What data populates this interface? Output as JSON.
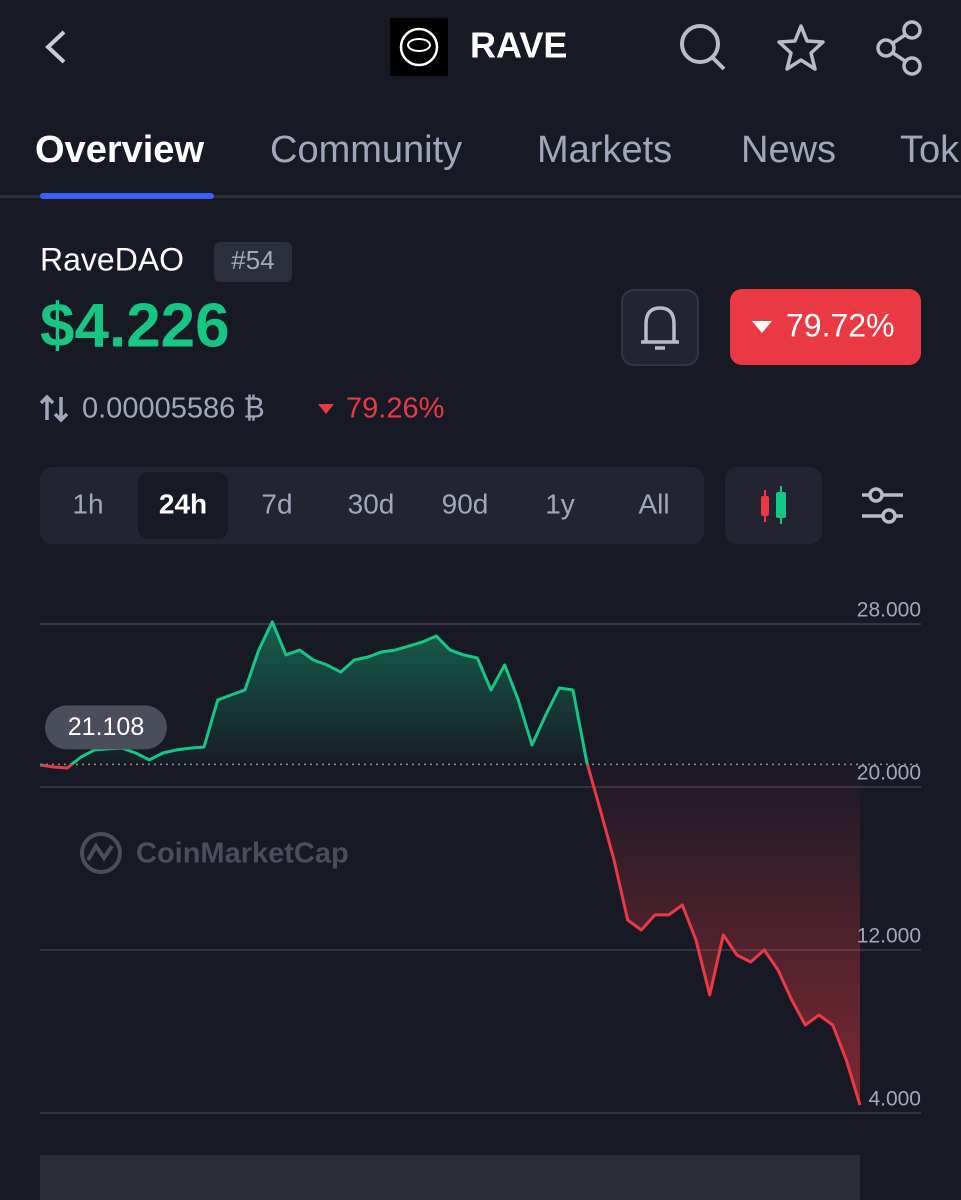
{
  "header": {
    "title": "RAVE"
  },
  "tabs": [
    "Overview",
    "Community",
    "Markets",
    "News",
    "Tok"
  ],
  "coin": {
    "name": "RaveDAO",
    "rank": "#54",
    "price": "$4.226",
    "change": "79.72%",
    "btc_price": "0.00005586 ₿",
    "btc_change": "79.26%"
  },
  "ranges": [
    "1h",
    "24h",
    "7d",
    "30d",
    "90d",
    "1y",
    "All"
  ],
  "chart_data": {
    "type": "line",
    "watermark": "CoinMarketCap",
    "baseline": 21.108,
    "values": [
      21.08,
      20.98,
      20.93,
      21.47,
      21.82,
      21.87,
      21.91,
      21.67,
      21.33,
      21.67,
      21.82,
      21.91,
      21.96,
      24.27,
      24.52,
      24.76,
      26.72,
      28.1,
      26.48,
      26.72,
      26.23,
      25.99,
      25.64,
      26.23,
      26.38,
      26.63,
      26.72,
      26.92,
      27.12,
      27.41,
      26.72,
      26.48,
      26.33,
      24.76,
      25.99,
      24.27,
      22.06,
      23.53,
      24.86,
      24.76,
      21.23,
      18.87,
      16.42,
      13.47,
      12.98,
      13.72,
      13.72,
      14.21,
      12.49,
      9.79,
      12.74,
      11.75,
      11.41,
      12.0,
      11.02,
      9.55,
      8.32,
      8.81,
      8.32,
      6.6,
      4.39
    ],
    "up_color": "#16c784",
    "down_color": "#ea3943",
    "ylim": [
      4,
      29
    ],
    "yticks": [
      {
        "value": 28,
        "label": "28.000"
      },
      {
        "value": 20,
        "label": "20.000"
      },
      {
        "value": 12,
        "label": "12.000"
      },
      {
        "value": 4,
        "label": "4.000"
      }
    ],
    "grid": true
  }
}
